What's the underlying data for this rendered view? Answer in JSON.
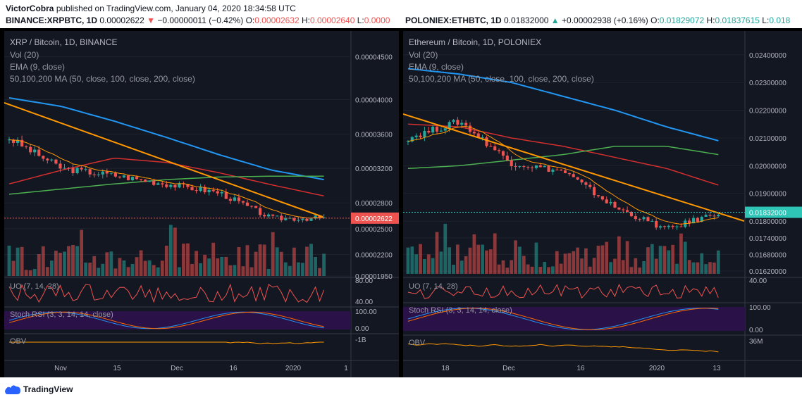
{
  "header": {
    "author": "VictorCobra",
    "published_text": "published on TradingView.com, January 04, 2020 18:34:58 UTC"
  },
  "left_symbol": {
    "name": "BINANCE:XRPBTC, 1D",
    "price": "0.00002622",
    "change": "−0.00000011 (−0.42%)",
    "o_label": "O:",
    "o_value": "0.00002632",
    "h_label": "H:",
    "h_value": "0.00002640",
    "l_label": "L:",
    "l_value": "0.0000"
  },
  "right_symbol": {
    "name": "POLONIEX:ETHBTC, 1D",
    "price": "0.01832000",
    "change": "+0.00002938 (+0.16%)",
    "o_label": "O:",
    "o_value": "0.01829072",
    "h_label": "H:",
    "h_value": "0.01837615",
    "l_label": "L:",
    "l_value": "0.018"
  },
  "footer": {
    "brand": "TradingView"
  },
  "colors": {
    "up": "#26a69a",
    "down": "#ef5350",
    "bg": "#131722",
    "ema": "#ff9800",
    "ma50": "#4caf50",
    "ma100": "#d32f2f",
    "ma200": "#2196f3",
    "trend": "#ff9800",
    "stoch_k": "#2196f3",
    "stoch_d": "#ff6d00",
    "stoch_band": "#2a1147"
  },
  "chart_data": [
    {
      "type": "candlestick",
      "title": "XRP / Bitcoin, 1D, BINANCE",
      "indicators": [
        "Vol (20)",
        "EMA (9, close)",
        "50,100,200 MA (50, close, 100, close, 200, close)"
      ],
      "y_ticks": [
        "0.00004500",
        "0.00004000",
        "0.00003600",
        "0.00003200",
        "0.00002800",
        "0.00002500",
        "0.00002200",
        "0.00001950"
      ],
      "x_ticks": [
        "Nov",
        "15",
        "Dec",
        "16",
        "2020",
        "1"
      ],
      "last_price": "0.00002622",
      "ylim": [
        1.95e-05,
        4.65e-05
      ],
      "ohlc_samples": [
        {
          "date": "Oct 20",
          "close": 3.55e-05
        },
        {
          "date": "Nov 1",
          "close": 3.2e-05
        },
        {
          "date": "Nov 15",
          "close": 3.12e-05
        },
        {
          "date": "Dec 1",
          "close": 3.02e-05
        },
        {
          "date": "Dec 16",
          "close": 2.92e-05
        },
        {
          "date": "Dec 20",
          "close": 2.62e-05
        },
        {
          "date": "Jan 04",
          "close": 2.622e-05
        }
      ],
      "ma200": [
        4.02e-05,
        3.92e-05,
        3.75e-05,
        3.56e-05,
        3.36e-05,
        3.18e-05,
        3.07e-05
      ],
      "ma100": [
        3.02e-05,
        3.18e-05,
        3.32e-05,
        3.27e-05,
        3.15e-05,
        3.01e-05,
        2.88e-05
      ],
      "ma50": [
        2.9e-05,
        2.96e-05,
        3.02e-05,
        3.07e-05,
        3.1e-05,
        3.11e-05,
        3.11e-05
      ],
      "panes": {
        "uo": {
          "label": "UO (7, 14, 28)",
          "ticks": [
            "80.00",
            "40.00"
          ]
        },
        "stoch": {
          "label": "Stoch RSI (3, 3, 14, 14, close)",
          "ticks": [
            "100.00",
            "0.00"
          ]
        },
        "obv": {
          "label": "OBV",
          "ticks": [
            "-1B"
          ]
        }
      }
    },
    {
      "type": "candlestick",
      "title": "Ethereum / Bitcoin, 1D, POLONIEX",
      "indicators": [
        "Vol (20)",
        "EMA (9, close)",
        "50,100,200 MA (50, close, 100, close, 200, close)"
      ],
      "y_ticks": [
        "0.02400000",
        "0.02300000",
        "0.02200000",
        "0.02100000",
        "0.02000000",
        "0.01900000",
        "0.01800000",
        "0.01740000",
        "0.01680000",
        "0.01620000"
      ],
      "x_ticks": [
        "18",
        "Dec",
        "16",
        "2020",
        "13"
      ],
      "last_price": "0.01832000",
      "ylim": [
        0.0161,
        0.0244
      ],
      "ohlc_samples": [
        {
          "date": "Nov 11",
          "close": 0.021
        },
        {
          "date": "Nov 18",
          "close": 0.0216
        },
        {
          "date": "Dec 1",
          "close": 0.0201
        },
        {
          "date": "Dec 16",
          "close": 0.0198
        },
        {
          "date": "Dec 18",
          "close": 0.0185
        },
        {
          "date": "Dec 24",
          "close": 0.0177
        },
        {
          "date": "Jan 04",
          "close": 0.01832
        }
      ],
      "ma200": [
        0.0235,
        0.0233,
        0.023,
        0.0225,
        0.022,
        0.0214,
        0.0209
      ],
      "ma100": [
        0.0215,
        0.0214,
        0.021,
        0.0207,
        0.0203,
        0.0199,
        0.0193
      ],
      "ma50": [
        0.0199,
        0.02,
        0.0202,
        0.0204,
        0.0207,
        0.0207,
        0.0204
      ],
      "panes": {
        "uo": {
          "label": "UO (7, 14, 28)",
          "ticks": [
            "40.00"
          ]
        },
        "stoch": {
          "label": "Stoch RSI (3, 3, 14, 14, close)",
          "ticks": [
            "100.00",
            "0.00"
          ]
        },
        "obv": {
          "label": "OBV",
          "ticks": [
            "36M"
          ]
        }
      }
    }
  ]
}
